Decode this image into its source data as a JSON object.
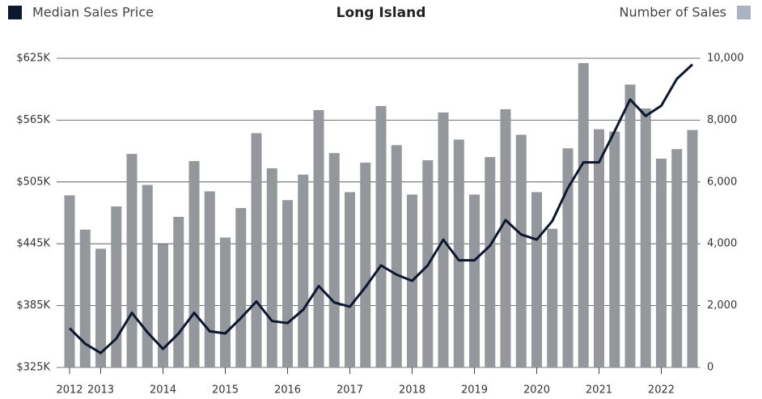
{
  "chart_data": {
    "type": "combo",
    "title": "Long Island",
    "categories": [
      "2012",
      null,
      "2013",
      null,
      null,
      null,
      "2014",
      null,
      null,
      null,
      "2015",
      null,
      null,
      null,
      "2016",
      null,
      null,
      null,
      "2017",
      null,
      null,
      null,
      "2018",
      null,
      null,
      null,
      "2019",
      null,
      null,
      null,
      "2020",
      null,
      null,
      null,
      "2021",
      null,
      null,
      null,
      "2022",
      null,
      null
    ],
    "series": [
      {
        "name": "Number of Sales",
        "type": "bar",
        "axis": "y2",
        "color": "#94979c",
        "legend_color": "#a8b4c4",
        "values": [
          5567,
          4459,
          3840,
          5206,
          6907,
          5902,
          3995,
          4871,
          6675,
          5696,
          4201,
          5155,
          7577,
          6443,
          5412,
          6237,
          8325,
          6933,
          5670,
          6624,
          8454,
          7191,
          5593,
          6701,
          8247,
          7371,
          5593,
          6804,
          8351,
          7526,
          5670,
          4485,
          7088,
          9845,
          7706,
          7629,
          9149,
          8376,
          6753,
          7062,
          7680
        ]
      },
      {
        "name": "Median Sales Price",
        "type": "line",
        "axis": "y",
        "color": "#0d1730",
        "values": [
          363000,
          348000,
          339000,
          353000,
          378000,
          359000,
          343000,
          358000,
          378000,
          360000,
          358000,
          373000,
          389000,
          370000,
          368000,
          381000,
          404000,
          388000,
          384000,
          403000,
          424000,
          415000,
          409000,
          424000,
          449000,
          429000,
          429000,
          443000,
          468000,
          454000,
          449000,
          467000,
          499000,
          524000,
          524000,
          554000,
          585000,
          569000,
          579000,
          605000,
          619000
        ]
      }
    ],
    "ylim": [
      325000,
      625000
    ],
    "yticks": [
      {
        "value": 325000,
        "label": "$325K"
      },
      {
        "value": 385000,
        "label": "$385K"
      },
      {
        "value": 445000,
        "label": "$445K"
      },
      {
        "value": 505000,
        "label": "$505K"
      },
      {
        "value": 565000,
        "label": "$565K"
      },
      {
        "value": 625000,
        "label": "$625K"
      }
    ],
    "y2lim": [
      0,
      10000
    ],
    "y2ticks": [
      0,
      {
        "value": 2000,
        "label": "2,000"
      },
      {
        "value": 4000,
        "label": "4,000"
      },
      {
        "value": 6000,
        "label": "6,000"
      },
      {
        "value": 8000,
        "label": "8,000"
      },
      {
        "value": 10000,
        "label": "10,000"
      }
    ],
    "grid": true
  }
}
